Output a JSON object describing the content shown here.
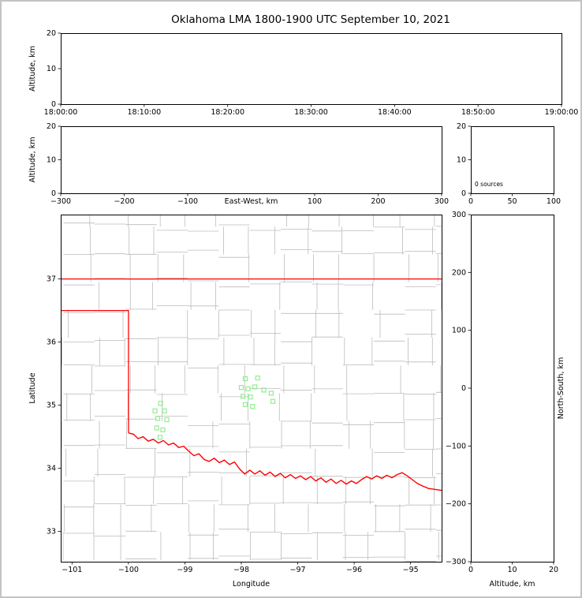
{
  "title": "Oklahoma LMA 1800-1900 UTC September 10, 2021",
  "colors": {
    "background": "#ffffff",
    "figure_border": "#c3c3c3",
    "axis": "#000000",
    "county_lines": "#bcbcbc",
    "state_border": "#ff0000",
    "station_marker": "#90ee90"
  },
  "chart_data": [
    {
      "id": "time-height-panel",
      "type": "scatter",
      "ylabel": "Altitude, km",
      "ylim": [
        0,
        20
      ],
      "yticks": [
        0,
        10,
        20
      ],
      "xtick_labels": [
        "18:00:00",
        "18:10:00",
        "18:20:00",
        "18:30:00",
        "18:40:00",
        "18:50:00",
        "19:00:00"
      ],
      "points": []
    },
    {
      "id": "ew-height-panel",
      "type": "scatter",
      "xlabel": "East-West, km",
      "ylabel": "Altitude, km",
      "xlim": [
        -300,
        300
      ],
      "xticks": [
        -300,
        -200,
        -100,
        100,
        200,
        300
      ],
      "ylim": [
        0,
        20
      ],
      "yticks": [
        0,
        10,
        20
      ],
      "points": []
    },
    {
      "id": "altitude-histogram-panel",
      "type": "histogram",
      "annotation": "0 sources",
      "xlim": [
        0,
        100
      ],
      "xticks": [
        0,
        50,
        100
      ],
      "ylim": [
        0,
        20
      ],
      "yticks": [
        0,
        10,
        20
      ],
      "values": []
    },
    {
      "id": "plan-view-map-panel",
      "type": "map-scatter",
      "xlabel": "Longitude",
      "ylabel": "Latitude",
      "xlim": [
        -101.2,
        -94.45
      ],
      "xticks": [
        -101,
        -100,
        -99,
        -98,
        -97,
        -96,
        -95
      ],
      "ylim": [
        32.52,
        38.02
      ],
      "yticks": [
        33,
        34,
        35,
        36,
        37
      ],
      "stations": [
        [
          -99.43,
          35.03
        ],
        [
          -99.53,
          34.91
        ],
        [
          -99.36,
          34.91
        ],
        [
          -99.48,
          34.79
        ],
        [
          -99.32,
          34.77
        ],
        [
          -99.5,
          34.64
        ],
        [
          -99.39,
          34.61
        ],
        [
          -99.44,
          34.49
        ],
        [
          -97.93,
          35.42
        ],
        [
          -97.71,
          35.43
        ],
        [
          -98.0,
          35.28
        ],
        [
          -97.88,
          35.26
        ],
        [
          -97.76,
          35.29
        ],
        [
          -97.97,
          35.14
        ],
        [
          -97.84,
          35.13
        ],
        [
          -97.93,
          35.01
        ],
        [
          -97.8,
          34.98
        ],
        [
          -97.6,
          35.24
        ],
        [
          -97.47,
          35.19
        ],
        [
          -97.44,
          35.06
        ]
      ],
      "state_border": {
        "north_lat37": [
          [
            -101.2,
            37.0
          ],
          [
            -94.45,
            37.0
          ]
        ],
        "panhandle_and_texas": [
          [
            -101.2,
            36.5
          ],
          [
            -100.0,
            36.5
          ],
          [
            -100.0,
            34.56
          ]
        ],
        "red_river": [
          [
            -100.0,
            34.56
          ],
          [
            -99.91,
            34.54
          ],
          [
            -99.83,
            34.47
          ],
          [
            -99.74,
            34.5
          ],
          [
            -99.65,
            34.43
          ],
          [
            -99.56,
            34.46
          ],
          [
            -99.47,
            34.4
          ],
          [
            -99.38,
            34.44
          ],
          [
            -99.29,
            34.37
          ],
          [
            -99.2,
            34.4
          ],
          [
            -99.11,
            34.33
          ],
          [
            -99.02,
            34.35
          ],
          [
            -98.93,
            34.27
          ],
          [
            -98.84,
            34.2
          ],
          [
            -98.75,
            34.23
          ],
          [
            -98.66,
            34.14
          ],
          [
            -98.57,
            34.11
          ],
          [
            -98.48,
            34.16
          ],
          [
            -98.39,
            34.09
          ],
          [
            -98.3,
            34.13
          ],
          [
            -98.21,
            34.06
          ],
          [
            -98.12,
            34.1
          ],
          [
            -98.03,
            33.99
          ],
          [
            -97.94,
            33.91
          ],
          [
            -97.85,
            33.97
          ],
          [
            -97.76,
            33.91
          ],
          [
            -97.67,
            33.96
          ],
          [
            -97.58,
            33.89
          ],
          [
            -97.49,
            33.94
          ],
          [
            -97.4,
            33.87
          ],
          [
            -97.31,
            33.92
          ],
          [
            -97.22,
            33.85
          ],
          [
            -97.13,
            33.9
          ],
          [
            -97.04,
            33.84
          ],
          [
            -96.95,
            33.88
          ],
          [
            -96.86,
            33.82
          ],
          [
            -96.77,
            33.87
          ],
          [
            -96.68,
            33.8
          ],
          [
            -96.59,
            33.85
          ],
          [
            -96.5,
            33.78
          ],
          [
            -96.41,
            33.83
          ],
          [
            -96.32,
            33.76
          ],
          [
            -96.23,
            33.81
          ],
          [
            -96.14,
            33.75
          ],
          [
            -96.05,
            33.8
          ],
          [
            -95.96,
            33.76
          ],
          [
            -95.87,
            33.82
          ],
          [
            -95.78,
            33.87
          ],
          [
            -95.69,
            33.83
          ],
          [
            -95.6,
            33.88
          ],
          [
            -95.51,
            33.84
          ],
          [
            -95.42,
            33.89
          ],
          [
            -95.33,
            33.85
          ],
          [
            -95.24,
            33.9
          ],
          [
            -95.15,
            33.93
          ],
          [
            -95.06,
            33.88
          ],
          [
            -94.97,
            33.82
          ],
          [
            -94.88,
            33.76
          ],
          [
            -94.79,
            33.72
          ],
          [
            -94.68,
            33.68
          ],
          [
            -94.45,
            33.65
          ]
        ]
      },
      "county_grid": {
        "dlon": 0.55,
        "dlat": 0.44,
        "jitter": 0.11,
        "skip": 0.1
      }
    },
    {
      "id": "ns-height-panel",
      "type": "scatter",
      "xlabel": "Altitude, km",
      "ylabel_right": "North-South, km",
      "xlim": [
        0,
        20
      ],
      "xticks": [
        0,
        10,
        20
      ],
      "ylim": [
        -300,
        300
      ],
      "yticks": [
        300,
        200,
        100,
        0,
        -100,
        -200,
        -300
      ],
      "points": []
    }
  ]
}
